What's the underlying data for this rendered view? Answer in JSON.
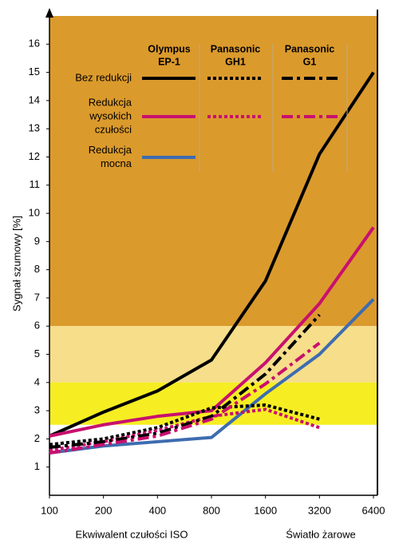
{
  "chart_data": {
    "type": "line",
    "y_label": "Sygnał szumowy [%]",
    "x_label": "Ekwiwalent czułości ISO",
    "x_label_right": "Światło żarowe",
    "categories": [
      "100",
      "200",
      "400",
      "800",
      "1600",
      "3200",
      "6400"
    ],
    "ylim": [
      0,
      17
    ],
    "yticks": [
      1,
      2,
      3,
      4,
      5,
      6,
      7,
      8,
      9,
      10,
      11,
      12,
      13,
      14,
      15,
      16
    ],
    "bands": [
      {
        "from": 6,
        "to": 17,
        "color": "#db9a2c"
      },
      {
        "from": 4,
        "to": 6,
        "color": "#f6de8a"
      },
      {
        "from": 2.5,
        "to": 4,
        "color": "#f6ee22"
      }
    ],
    "legend_rows": [
      {
        "lines": [
          "Bez redukcji"
        ],
        "color": "#000000"
      },
      {
        "lines": [
          "Redukcja",
          "wysokich",
          "czułości"
        ],
        "color": "#c8106e"
      },
      {
        "lines": [
          "Redukcja",
          "mocna"
        ],
        "color": "#3d6cb0"
      }
    ],
    "groups": [
      {
        "name": [
          "Olympus",
          "EP-1"
        ],
        "dash": "solid",
        "series": [
          {
            "values": [
              2.1,
              2.95,
              3.7,
              4.8,
              7.6,
              12.1,
              15.0
            ]
          },
          {
            "values": [
              2.1,
              2.5,
              2.8,
              3.0,
              4.7,
              6.8,
              9.5
            ]
          },
          {
            "values": [
              1.5,
              1.75,
              1.9,
              2.05,
              3.6,
              5.0,
              6.95
            ]
          }
        ]
      },
      {
        "name": [
          "Panasonic",
          "GH1"
        ],
        "dash": "dotted",
        "series": [
          {
            "values": [
              1.8,
              2.0,
              2.4,
              3.1,
              3.2,
              2.7,
              null
            ]
          },
          {
            "values": [
              1.6,
              1.9,
              2.3,
              2.8,
              3.05,
              2.4,
              null
            ]
          }
        ]
      },
      {
        "name": [
          "Panasonic",
          "G1"
        ],
        "dash": "dashdot",
        "series": [
          {
            "values": [
              1.7,
              1.9,
              2.2,
              2.8,
              4.3,
              6.4,
              null
            ]
          },
          {
            "values": [
              1.5,
              1.8,
              2.1,
              2.7,
              3.95,
              5.4,
              null
            ]
          }
        ]
      }
    ]
  }
}
